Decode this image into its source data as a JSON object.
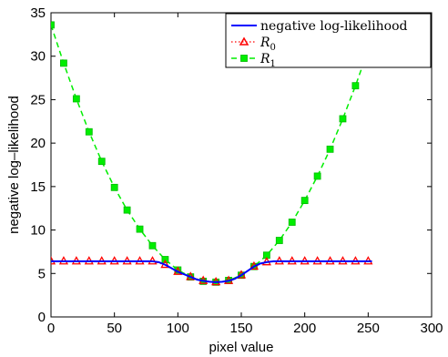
{
  "chart_data": {
    "type": "line",
    "xlabel": "pixel value",
    "ylabel": "negative log–likelihood",
    "xlim": [
      0,
      300
    ],
    "ylim": [
      0,
      35
    ],
    "x_ticks": [
      0,
      50,
      100,
      150,
      200,
      250,
      300
    ],
    "y_ticks": [
      0,
      5,
      10,
      15,
      20,
      25,
      30,
      35
    ],
    "grid": false,
    "legend_position": "top-right",
    "series": [
      {
        "name": "negative log-likelihood",
        "color": "#0000ff",
        "line_style": "solid",
        "marker": "none",
        "x": [
          0,
          10,
          20,
          30,
          40,
          50,
          60,
          70,
          80,
          85,
          90,
          95,
          100,
          105,
          110,
          115,
          120,
          125,
          130,
          135,
          140,
          145,
          150,
          155,
          160,
          165,
          170,
          175,
          180,
          190,
          200,
          210,
          220,
          230,
          240,
          250,
          253
        ],
        "y": [
          6.4,
          6.4,
          6.4,
          6.4,
          6.4,
          6.4,
          6.4,
          6.4,
          6.4,
          6.3,
          6.0,
          5.6,
          5.2,
          4.9,
          4.6,
          4.3,
          4.15,
          4.05,
          4.0,
          4.05,
          4.15,
          4.4,
          4.8,
          5.3,
          5.8,
          6.15,
          6.3,
          6.4,
          6.4,
          6.4,
          6.4,
          6.4,
          6.4,
          6.4,
          6.4,
          6.4,
          6.4
        ]
      },
      {
        "name": "R_0",
        "color": "#ff0000",
        "line_style": "dotted",
        "marker": "triangle",
        "x": [
          0,
          10,
          20,
          30,
          40,
          50,
          60,
          70,
          80,
          90,
          100,
          110,
          120,
          130,
          140,
          150,
          160,
          170,
          180,
          190,
          200,
          210,
          220,
          230,
          240,
          250
        ],
        "y": [
          6.4,
          6.4,
          6.4,
          6.4,
          6.4,
          6.4,
          6.4,
          6.4,
          6.4,
          6.0,
          5.2,
          4.6,
          4.15,
          4.0,
          4.15,
          4.8,
          5.8,
          6.3,
          6.4,
          6.4,
          6.4,
          6.4,
          6.4,
          6.4,
          6.4,
          6.4
        ]
      },
      {
        "name": "R_1",
        "color": "#00ee00",
        "line_style": "dashed",
        "marker": "square",
        "x": [
          0,
          10,
          20,
          30,
          40,
          50,
          60,
          70,
          80,
          90,
          100,
          110,
          120,
          130,
          140,
          150,
          160,
          170,
          180,
          190,
          200,
          210,
          220,
          230,
          240,
          250
        ],
        "y": [
          33.6,
          29.2,
          25.1,
          21.3,
          17.9,
          14.9,
          12.3,
          10.1,
          8.2,
          6.6,
          5.4,
          4.6,
          4.1,
          4.0,
          4.2,
          4.8,
          5.8,
          7.1,
          8.8,
          10.9,
          13.4,
          16.2,
          19.3,
          22.8,
          26.6,
          30.7
        ]
      }
    ],
    "legend": {
      "entry_0": "negative log-likelihood",
      "entry_1_main": "R",
      "entry_1_sub": "0",
      "entry_2_main": "R",
      "entry_2_sub": "1"
    }
  }
}
